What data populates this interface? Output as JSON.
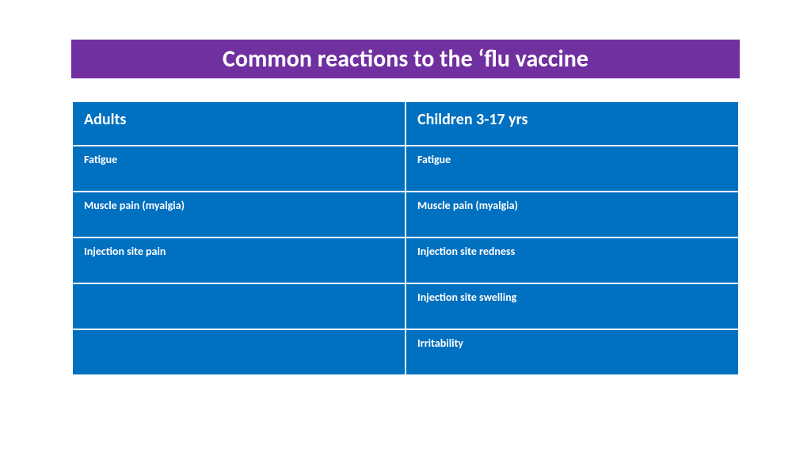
{
  "title": {
    "text": "Common reactions to the ‘flu vaccine",
    "background_color": "#7030a0",
    "text_color": "#ffffff",
    "fontsize": 30
  },
  "table": {
    "type": "table",
    "header_bg": "#0070c0",
    "cell_bg": "#0070c0",
    "border_color": "#ffffff",
    "header_fontsize": 20,
    "cell_fontsize": 14,
    "columns": [
      "Adults",
      "Children 3-17 yrs"
    ],
    "rows": [
      [
        "Fatigue",
        "Fatigue"
      ],
      [
        "Muscle pain (myalgia)",
        "Muscle pain (myalgia)"
      ],
      [
        "Injection site pain",
        "Injection site redness"
      ],
      [
        "",
        "Injection site swelling"
      ],
      [
        "",
        "Irritability"
      ]
    ]
  }
}
